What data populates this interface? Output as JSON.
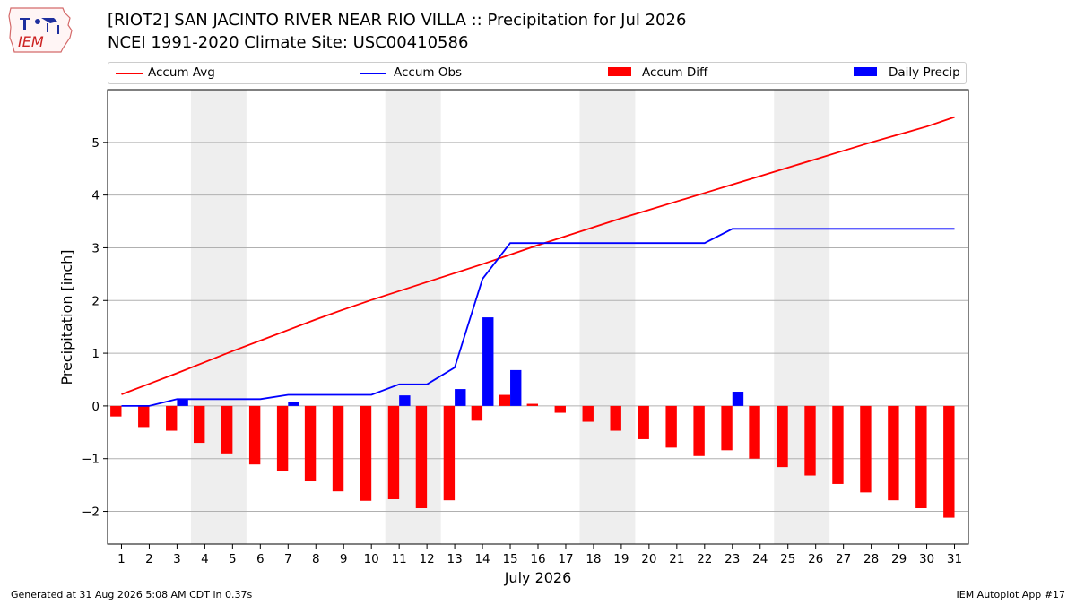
{
  "header": {
    "title_line1": "[RIOT2] SAN JACINTO RIVER NEAR RIO VILLA :: Precipitation for Jul 2026",
    "title_line2": "NCEI 1991-2020 Climate Site: USC00410586",
    "logo_text": "IEM"
  },
  "footer": {
    "generated": "Generated at 31 Aug 2026 5:08 AM CDT in 0.37s",
    "app": "IEM Autoplot App #17"
  },
  "colors": {
    "avg": "#ff0000",
    "obs": "#0000ff",
    "diff": "#ff0000",
    "daily": "#0000ff",
    "weekend": "#eeeeee",
    "grid": "#b0b0b0"
  },
  "chart_data": {
    "type": "bar",
    "title": "[RIOT2] SAN JACINTO RIVER NEAR RIO VILLA :: Precipitation for Jul 2026",
    "xlabel": "July 2026",
    "ylabel": "Precipitation [inch]",
    "x": [
      1,
      2,
      3,
      4,
      5,
      6,
      7,
      8,
      9,
      10,
      11,
      12,
      13,
      14,
      15,
      16,
      17,
      18,
      19,
      20,
      21,
      22,
      23,
      24,
      25,
      26,
      27,
      28,
      29,
      30,
      31
    ],
    "xlim": [
      0.5,
      31.5
    ],
    "ylim": [
      -2.62,
      6.0
    ],
    "yticks": [
      -2,
      -1,
      0,
      1,
      2,
      3,
      4,
      5
    ],
    "ytick_labels": [
      "−2",
      "−1",
      "0",
      "1",
      "2",
      "3",
      "4",
      "5"
    ],
    "grid": true,
    "legend_position": "top",
    "weekend_bands": [
      [
        3.5,
        5.5
      ],
      [
        10.5,
        12.5
      ],
      [
        17.5,
        19.5
      ],
      [
        24.5,
        26.5
      ]
    ],
    "series": [
      {
        "name": "Accum Avg",
        "kind": "line",
        "values": [
          0.22,
          0.42,
          0.62,
          0.83,
          1.04,
          1.24,
          1.44,
          1.64,
          1.83,
          2.01,
          2.18,
          2.35,
          2.52,
          2.69,
          2.87,
          3.05,
          3.22,
          3.39,
          3.56,
          3.72,
          3.88,
          4.04,
          4.2,
          4.36,
          4.52,
          4.68,
          4.84,
          5.0,
          5.15,
          5.3,
          5.48
        ]
      },
      {
        "name": "Accum Obs",
        "kind": "line",
        "values": [
          0.0,
          0.0,
          0.13,
          0.13,
          0.13,
          0.13,
          0.21,
          0.21,
          0.21,
          0.21,
          0.41,
          0.41,
          0.73,
          2.41,
          3.09,
          3.09,
          3.09,
          3.09,
          3.09,
          3.09,
          3.09,
          3.09,
          3.36,
          3.36,
          3.36,
          3.36,
          3.36,
          3.36,
          3.36,
          3.36,
          3.36
        ]
      },
      {
        "name": "Accum Diff",
        "kind": "bar",
        "values": [
          -0.2,
          -0.4,
          -0.47,
          -0.7,
          -0.9,
          -1.11,
          -1.23,
          -1.43,
          -1.62,
          -1.8,
          -1.77,
          -1.94,
          -1.79,
          -0.28,
          0.21,
          0.04,
          -0.13,
          -0.3,
          -0.47,
          -0.63,
          -0.79,
          -0.95,
          -0.84,
          -1.0,
          -1.16,
          -1.32,
          -1.48,
          -1.64,
          -1.79,
          -1.94,
          -2.12
        ]
      },
      {
        "name": "Daily Precip",
        "kind": "bar",
        "values": [
          0,
          0,
          0.13,
          0,
          0,
          0,
          0.08,
          0,
          0,
          0,
          0.2,
          0,
          0.32,
          1.68,
          0.68,
          0,
          0,
          0,
          0,
          0,
          0,
          0,
          0.27,
          0,
          0,
          0,
          0,
          0,
          0,
          0,
          0
        ]
      }
    ]
  }
}
